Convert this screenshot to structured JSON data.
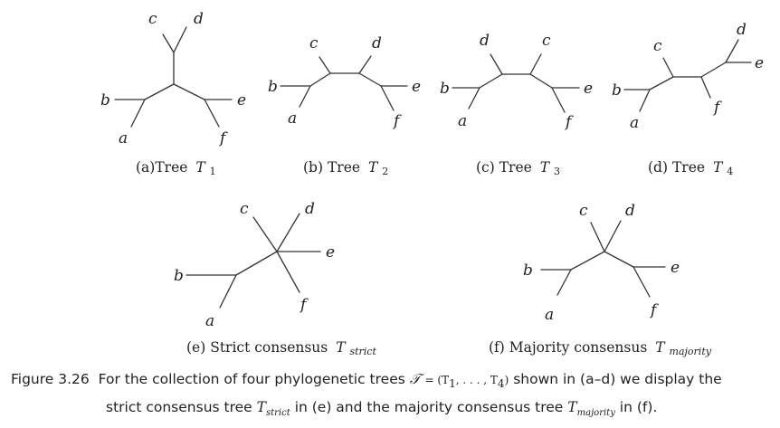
{
  "panels": [
    {
      "id": "a",
      "caption_prefix": "(a)Tree",
      "tree_sym": "T",
      "tree_sub": "1"
    },
    {
      "id": "b",
      "caption_prefix": "(b) Tree",
      "tree_sym": "T",
      "tree_sub": "2"
    },
    {
      "id": "c",
      "caption_prefix": "(c) Tree",
      "tree_sym": "T",
      "tree_sub": "3"
    },
    {
      "id": "d",
      "caption_prefix": "(d) Tree",
      "tree_sym": "T",
      "tree_sub": "4"
    },
    {
      "id": "e",
      "caption_prefix": "(e) Strict consensus",
      "tree_sym": "T",
      "tree_sub": "strict"
    },
    {
      "id": "f",
      "caption_prefix": "(f) Majority consensus",
      "tree_sym": "T",
      "tree_sub": "majority"
    }
  ],
  "leaf_labels": [
    "a",
    "b",
    "c",
    "d",
    "e",
    "f"
  ],
  "figure_caption": {
    "label": "Figure 3.26",
    "text1": "For the collection of four phylogenetic trees",
    "set_sym": "𝒯",
    "set_expr": "= (T",
    "set_sub1": "1",
    "set_mid": ", . . . , T",
    "set_sub4": "4",
    "set_close": ")",
    "text2": "shown in (a–d) we display the",
    "text3": "strict consensus tree",
    "strict_sym": "T",
    "strict_sub": "strict",
    "text4": "in (e) and the majority consensus tree",
    "major_sym": "T",
    "major_sub": "majority",
    "text5": "in (f)."
  },
  "colors": {
    "ink": "#222222",
    "edge": "#333333",
    "background": "#ffffff"
  }
}
